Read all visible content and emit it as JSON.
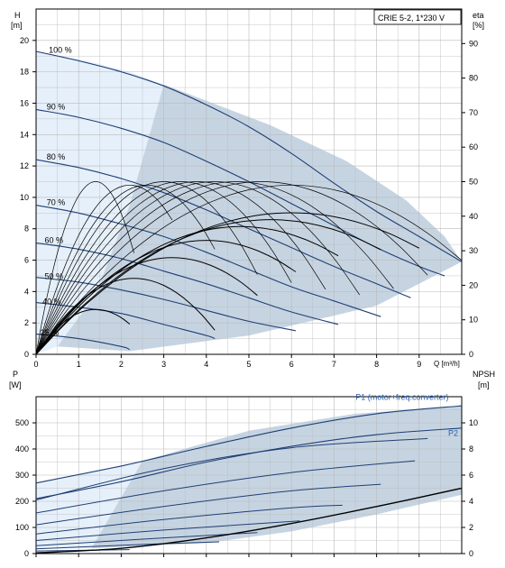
{
  "colors": {
    "grid": "#b9b9b9",
    "axis": "#000000",
    "area_dark": "#c6d4e2",
    "area_light": "#e6f0fa",
    "curve_blue": "#1f3f73",
    "label_blue": "#2a5fa8",
    "efficiency": "#000000"
  },
  "chart_data": [
    {
      "type": "line",
      "title": "CRIE 5-2, 1*230 V",
      "ylabel_left": "H",
      "ylabel_left_unit": "[m]",
      "ylabel_right": "eta",
      "ylabel_right_unit": "[%]",
      "xlabel": "Q [m³/h]",
      "xlim": [
        0,
        10
      ],
      "ylim_left": [
        0,
        22
      ],
      "ylim_right": [
        0,
        100
      ],
      "x_ticks": [
        0,
        1,
        2,
        3,
        4,
        5,
        6,
        7,
        8,
        9
      ],
      "y_ticks_left": [
        0,
        2,
        4,
        6,
        8,
        10,
        12,
        14,
        16,
        18,
        20
      ],
      "y_ticks_right": [
        0,
        10,
        20,
        30,
        40,
        50,
        60,
        70,
        80,
        90
      ],
      "grid": true,
      "speed_labels": [
        {
          "text": "100 %",
          "x": 0.3,
          "y": 19.2
        },
        {
          "text": "90 %",
          "x": 0.25,
          "y": 15.6
        },
        {
          "text": "80 %",
          "x": 0.25,
          "y": 12.4
        },
        {
          "text": "70 %",
          "x": 0.25,
          "y": 9.5
        },
        {
          "text": "60 %",
          "x": 0.2,
          "y": 7.1
        },
        {
          "text": "50 %",
          "x": 0.2,
          "y": 4.8
        },
        {
          "text": "40 %",
          "x": 0.15,
          "y": 3.2
        },
        {
          "text": "25 %",
          "x": 0.1,
          "y": 1.2
        }
      ],
      "operating_area": [
        [
          2.2,
          0.2
        ],
        [
          5,
          1.2
        ],
        [
          8,
          3.1
        ],
        [
          10,
          5.9
        ],
        [
          9.6,
          7.5
        ],
        [
          8.7,
          9.8
        ],
        [
          7.3,
          12.3
        ],
        [
          5.5,
          14.6
        ],
        [
          3,
          17.2
        ],
        [
          2.2,
          9.5
        ],
        [
          1.4,
          3.8
        ],
        [
          0.5,
          0.5
        ]
      ],
      "light_area": [
        [
          0,
          0
        ],
        [
          0.5,
          0.5
        ],
        [
          1.4,
          3.8
        ],
        [
          2.2,
          9.5
        ],
        [
          3,
          17.2
        ],
        [
          2.2,
          18
        ],
        [
          1.2,
          18.7
        ],
        [
          0,
          19.3
        ]
      ],
      "series": [
        {
          "name": "100 %",
          "x": [
            0,
            1,
            2,
            3,
            4,
            5,
            6,
            7,
            8,
            9,
            10
          ],
          "y": [
            19.3,
            18.7,
            18,
            17.1,
            15.9,
            14.5,
            12.8,
            10.9,
            9.1,
            7.5,
            5.9
          ]
        },
        {
          "name": "90 %",
          "x": [
            0,
            1,
            2,
            3,
            4,
            5,
            6,
            7,
            8,
            9,
            9.6
          ],
          "y": [
            15.6,
            15.1,
            14.4,
            13.5,
            12.3,
            11,
            9.6,
            8.2,
            6.8,
            5.6,
            5
          ]
        },
        {
          "name": "80 %",
          "x": [
            0,
            1,
            2,
            3,
            4,
            5,
            6,
            7,
            8,
            8.8
          ],
          "y": [
            12.4,
            11.9,
            11.2,
            10.3,
            9.2,
            8,
            6.8,
            5.6,
            4.5,
            3.6
          ]
        },
        {
          "name": "70 %",
          "x": [
            0,
            1,
            2,
            3,
            4,
            5,
            6,
            7,
            8.1
          ],
          "y": [
            9.5,
            9,
            8.3,
            7.5,
            6.5,
            5.4,
            4.3,
            3.4,
            2.4
          ]
        },
        {
          "name": "60 %",
          "x": [
            0,
            1,
            2,
            3,
            4,
            5,
            6,
            7.1
          ],
          "y": [
            7.1,
            6.7,
            6.1,
            5.3,
            4.5,
            3.6,
            2.7,
            1.9
          ]
        },
        {
          "name": "50 %",
          "x": [
            0,
            1,
            2,
            3,
            4,
            5,
            6.1
          ],
          "y": [
            4.9,
            4.6,
            4.1,
            3.5,
            2.8,
            2.1,
            1.5
          ]
        },
        {
          "name": "40 %",
          "x": [
            0,
            1,
            2,
            3,
            4,
            4.2
          ],
          "y": [
            3.3,
            3,
            2.6,
            1.9,
            1.2,
            1
          ]
        },
        {
          "name": "25 %",
          "x": [
            0,
            1,
            2,
            2.2
          ],
          "y": [
            1.3,
            1,
            0.5,
            0.3
          ]
        }
      ],
      "efficiency_curves": [
        {
          "peak_x": 1.4,
          "peak_eta": 50,
          "end_x": 2.3
        },
        {
          "peak_x": 2.2,
          "peak_eta": 49,
          "end_x": 3.2
        },
        {
          "peak_x": 2.6,
          "peak_eta": 49,
          "end_x": 4.2
        },
        {
          "peak_x": 3.0,
          "peak_eta": 50,
          "end_x": 5.2
        },
        {
          "peak_x": 3.4,
          "peak_eta": 50,
          "end_x": 6.0
        },
        {
          "peak_x": 3.8,
          "peak_eta": 50,
          "end_x": 6.8
        },
        {
          "peak_x": 4.2,
          "peak_eta": 50,
          "end_x": 7.6
        },
        {
          "peak_x": 4.7,
          "peak_eta": 50,
          "end_x": 8.4
        },
        {
          "peak_x": 5.3,
          "peak_eta": 50,
          "end_x": 9.2
        },
        {
          "peak_x": 6.0,
          "peak_eta": 49,
          "end_x": 10
        },
        {
          "peak_x": 1.4,
          "peak_eta": 13,
          "end_x": 2.2
        },
        {
          "peak_x": 2.3,
          "peak_eta": 22,
          "end_x": 4.2
        },
        {
          "peak_x": 3.2,
          "peak_eta": 28,
          "end_x": 5.2
        },
        {
          "peak_x": 4.0,
          "peak_eta": 33,
          "end_x": 6.1
        },
        {
          "peak_x": 4.8,
          "peak_eta": 37,
          "end_x": 7.1
        },
        {
          "peak_x": 5.5,
          "peak_eta": 39,
          "end_x": 8.1
        },
        {
          "peak_x": 6.0,
          "peak_eta": 41,
          "end_x": 9.0
        }
      ]
    },
    {
      "type": "line",
      "ylabel_left": "P",
      "ylabel_left_unit": "[W]",
      "ylabel_right": "NPSH",
      "ylabel_right_unit": "[m]",
      "xlim": [
        0,
        10
      ],
      "ylim_left": [
        0,
        600
      ],
      "ylim_right": [
        0,
        12
      ],
      "y_ticks_left": [
        0,
        100,
        200,
        300,
        400,
        500
      ],
      "y_ticks_right": [
        0,
        2,
        4,
        6,
        8,
        10
      ],
      "grid": true,
      "series_labels": [
        {
          "text": "P1 (motor+freq.converter)",
          "x": 8.6,
          "y": 588
        },
        {
          "text": "P2",
          "x": 9.8,
          "y": 450
        }
      ],
      "operating_area": [
        [
          1.3,
          20
        ],
        [
          4,
          40
        ],
        [
          6,
          85
        ],
        [
          8,
          150
        ],
        [
          10,
          225
        ],
        [
          10,
          565
        ],
        [
          7.5,
          535
        ],
        [
          5,
          470
        ],
        [
          2.5,
          355
        ]
      ],
      "light_area": [
        [
          0,
          20
        ],
        [
          1.3,
          20
        ],
        [
          2.5,
          355
        ],
        [
          0,
          270
        ]
      ],
      "series": [
        {
          "name": "P1 (motor+freq.converter)",
          "x": [
            0,
            2,
            4,
            6,
            8,
            10
          ],
          "y": [
            270,
            335,
            410,
            480,
            535,
            565
          ]
        },
        {
          "name": "P2",
          "x": [
            0,
            2,
            4,
            6,
            8,
            10
          ],
          "y": [
            210,
            275,
            350,
            410,
            455,
            480
          ]
        }
      ],
      "p1_reduced": [
        {
          "x": [
            0,
            3,
            6,
            9.2
          ],
          "y": [
            205,
            325,
            405,
            440
          ]
        },
        {
          "x": [
            0,
            3,
            6,
            8.9
          ],
          "y": [
            155,
            240,
            310,
            355
          ]
        },
        {
          "x": [
            0,
            3,
            6,
            8.1
          ],
          "y": [
            110,
            180,
            240,
            265
          ]
        },
        {
          "x": [
            0,
            3,
            6,
            7.2
          ],
          "y": [
            75,
            130,
            175,
            185
          ]
        },
        {
          "x": [
            0,
            3,
            6.2
          ],
          "y": [
            50,
            90,
            125
          ]
        },
        {
          "x": [
            0,
            2.5,
            5.2
          ],
          "y": [
            30,
            55,
            80
          ]
        },
        {
          "x": [
            0,
            2.5,
            4.3
          ],
          "y": [
            18,
            35,
            45
          ]
        },
        {
          "x": [
            0,
            2.2
          ],
          "y": [
            10,
            15
          ]
        }
      ],
      "npsh": {
        "x": [
          0,
          2,
          4,
          6,
          8,
          10
        ],
        "y": [
          0.05,
          0.4,
          1.2,
          2.3,
          3.6,
          5
        ]
      }
    }
  ]
}
